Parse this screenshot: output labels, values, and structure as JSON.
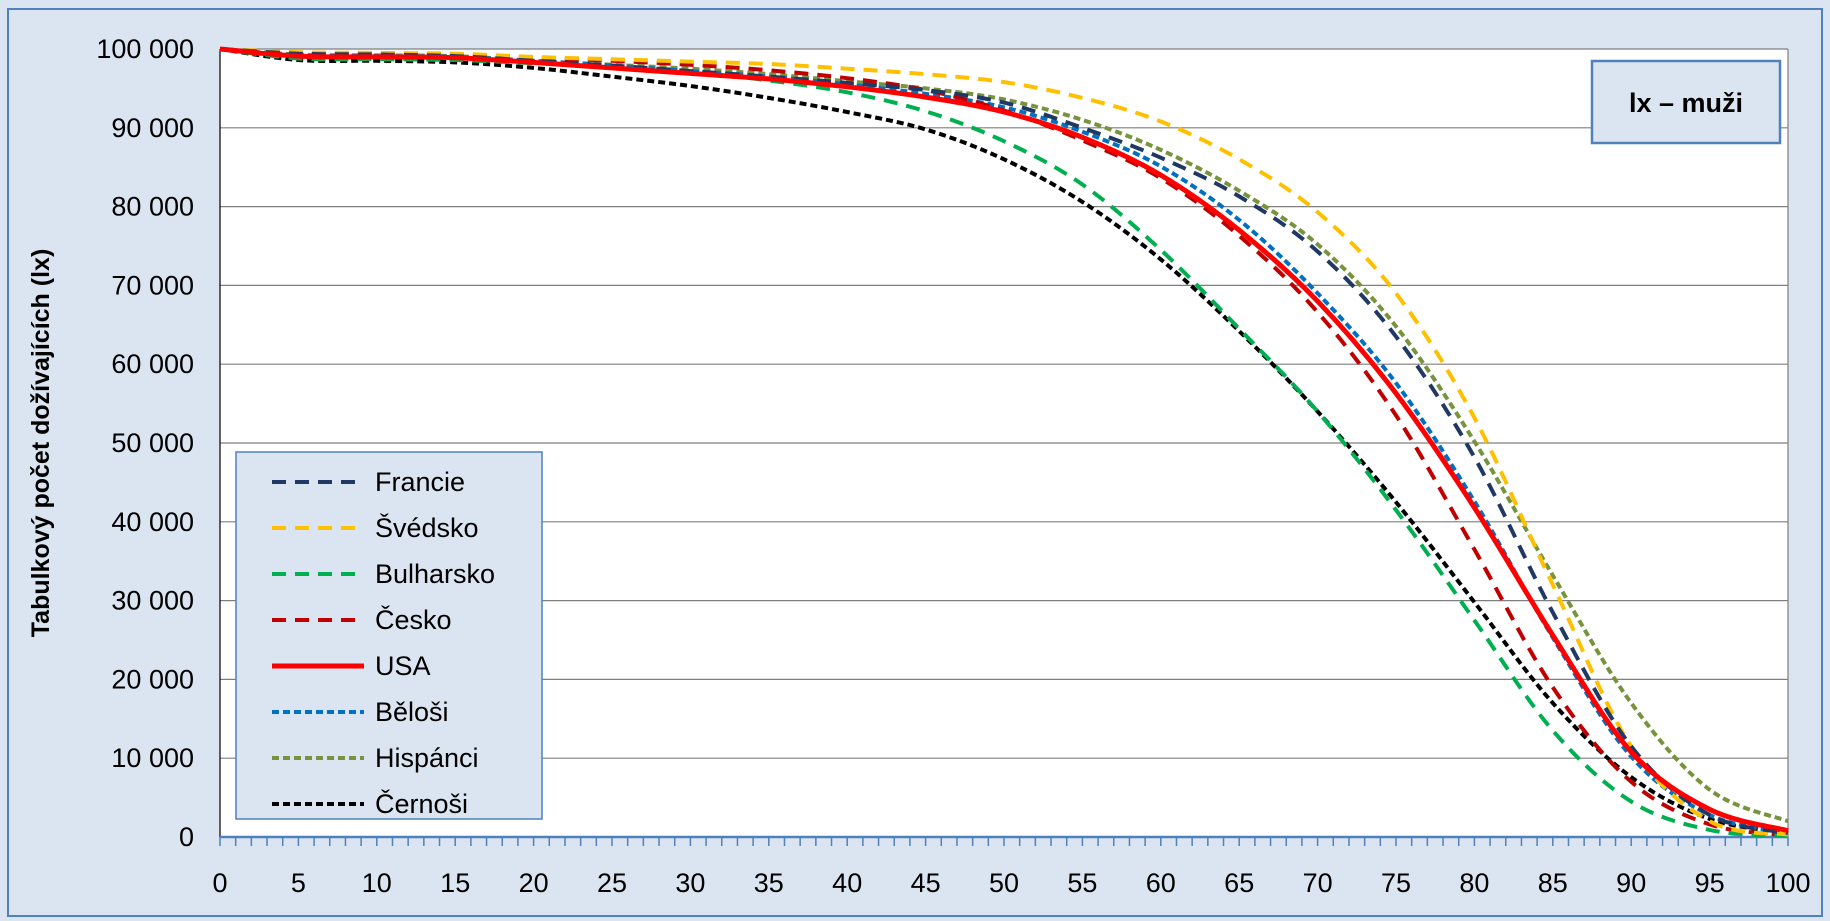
{
  "chart_data": {
    "type": "line",
    "title": "",
    "corner_label": "lx – muži",
    "xlabel": "",
    "ylabel": "Tabulkový počet dožívajících (lx)",
    "xlim": [
      0,
      100
    ],
    "ylim": [
      0,
      100000
    ],
    "x_ticks": [
      0,
      5,
      10,
      15,
      20,
      25,
      30,
      35,
      40,
      45,
      50,
      55,
      60,
      65,
      70,
      75,
      80,
      85,
      90,
      95,
      100
    ],
    "y_ticks": [
      0,
      10000,
      20000,
      30000,
      40000,
      50000,
      60000,
      70000,
      80000,
      90000,
      100000
    ],
    "y_tick_labels": [
      "0",
      "10 000",
      "20 000",
      "30 000",
      "40 000",
      "50 000",
      "60 000",
      "70 000",
      "80 000",
      "90 000",
      "100 000"
    ],
    "grid": "horizontal",
    "legend_position": "bottom-left",
    "x": [
      0,
      5,
      10,
      15,
      20,
      25,
      30,
      35,
      40,
      45,
      50,
      55,
      60,
      65,
      70,
      75,
      80,
      85,
      90,
      95,
      100
    ],
    "series": [
      {
        "name": "Francie",
        "color": "#1f3864",
        "style": "dash",
        "values": [
          100000,
          99400,
          99300,
          99100,
          98500,
          97900,
          97200,
          96500,
          95700,
          94800,
          93200,
          90000,
          86200,
          81300,
          74300,
          63500,
          48200,
          28500,
          11500,
          2800,
          500
        ]
      },
      {
        "name": "Švédsko",
        "color": "#ffc000",
        "style": "dash",
        "values": [
          100000,
          99600,
          99500,
          99400,
          99000,
          98700,
          98400,
          98100,
          97500,
          96800,
          95800,
          93800,
          90800,
          86000,
          79300,
          69000,
          53200,
          32000,
          11500,
          2000,
          300
        ]
      },
      {
        "name": "Bulharsko",
        "color": "#00b050",
        "style": "dash",
        "values": [
          100000,
          98800,
          98700,
          98600,
          98200,
          97800,
          97100,
          96000,
          94500,
          92100,
          88300,
          82800,
          74500,
          64500,
          54000,
          41500,
          27500,
          13500,
          4500,
          900,
          100
        ]
      },
      {
        "name": "Česko",
        "color": "#c00000",
        "style": "dash",
        "values": [
          100000,
          99500,
          99400,
          99300,
          98900,
          98500,
          98000,
          97300,
          96300,
          94800,
          92200,
          88400,
          83600,
          76300,
          66600,
          53500,
          36500,
          19000,
          7000,
          1600,
          200
        ]
      },
      {
        "name": "USA",
        "color": "#ff0000",
        "style": "solid",
        "values": [
          100000,
          99100,
          99000,
          98900,
          98300,
          97600,
          96900,
          96200,
          95200,
          93900,
          92000,
          88800,
          84000,
          77000,
          68000,
          56300,
          41800,
          25600,
          10800,
          3500,
          800
        ]
      },
      {
        "name": "Běloši",
        "color": "#0070c0",
        "style": "dot",
        "values": [
          100000,
          99200,
          99100,
          99000,
          98500,
          97900,
          97200,
          96500,
          95500,
          94300,
          92600,
          89500,
          85100,
          78300,
          69000,
          57600,
          42600,
          25300,
          10200,
          2800,
          500
        ]
      },
      {
        "name": "Hispánci",
        "color": "#77933c",
        "style": "dot",
        "values": [
          100000,
          99300,
          99200,
          99100,
          98500,
          98000,
          97500,
          96800,
          95900,
          95000,
          93600,
          91000,
          87200,
          82000,
          75200,
          64800,
          50200,
          33200,
          17000,
          6000,
          2000
        ]
      },
      {
        "name": "Černoši",
        "color": "#000000",
        "style": "dot",
        "values": [
          100000,
          98600,
          98500,
          98300,
          97600,
          96500,
          95300,
          93800,
          92000,
          89800,
          86000,
          80600,
          73300,
          64200,
          54000,
          42500,
          29800,
          17000,
          7600,
          2300,
          500
        ]
      }
    ]
  }
}
